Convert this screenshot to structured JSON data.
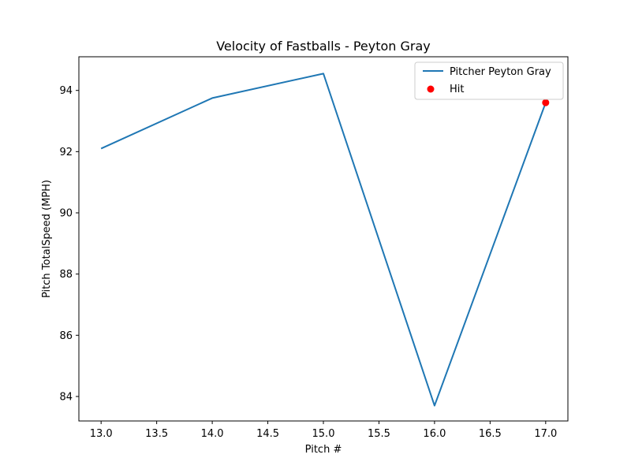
{
  "chart_data": {
    "type": "line",
    "title": "Velocity of Fastballs - Peyton Gray",
    "xlabel": "Pitch #",
    "ylabel": "Pitch TotalSpeed (MPH)",
    "xlim": [
      12.8,
      17.2
    ],
    "ylim": [
      83.2,
      95.1
    ],
    "xticks": [
      13.0,
      13.5,
      14.0,
      14.5,
      15.0,
      15.5,
      16.0,
      16.5,
      17.0
    ],
    "xtick_labels": [
      "13.0",
      "13.5",
      "14.0",
      "14.5",
      "15.0",
      "15.5",
      "16.0",
      "16.5",
      "17.0"
    ],
    "yticks": [
      84,
      86,
      88,
      90,
      92,
      94
    ],
    "ytick_labels": [
      "84",
      "86",
      "88",
      "90",
      "92",
      "94"
    ],
    "grid": false,
    "legend_position": "top-right",
    "series": [
      {
        "name": "Pitcher Peyton Gray",
        "kind": "line",
        "color": "#1f77b4",
        "x": [
          13,
          14,
          15,
          16,
          17
        ],
        "y": [
          92.1,
          93.75,
          94.55,
          83.7,
          93.6
        ]
      },
      {
        "name": "Hit",
        "kind": "scatter",
        "color": "#ff0000",
        "x": [
          17
        ],
        "y": [
          93.6
        ]
      }
    ]
  }
}
